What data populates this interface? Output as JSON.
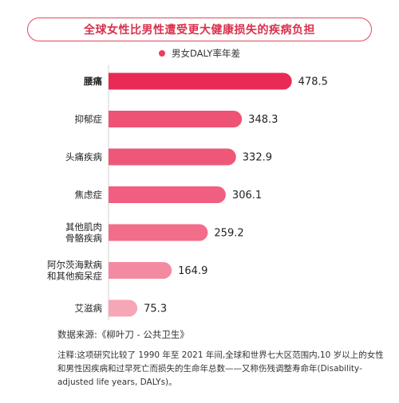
{
  "header": {
    "title": "全球女性比男性遭受更大健康损失的疾病负担"
  },
  "chart_data": {
    "type": "bar",
    "orientation": "horizontal",
    "title": "全球女性比男性遭受更大健康损失的疾病负担",
    "categories": [
      "腰痛",
      "抑郁症",
      "头痛疾病",
      "焦虑症",
      "其他肌肉\n骨骼疾病",
      "阿尔茨海默病\n和其他痴呆症",
      "艾滋病"
    ],
    "series": [
      {
        "name": "男女DALY率年差",
        "values": [
          478.5,
          348.3,
          332.9,
          306.1,
          259.2,
          164.9,
          75.3
        ]
      }
    ],
    "value_labels": [
      "478.5",
      "348.3",
      "332.9",
      "306.1",
      "259.2",
      "164.9",
      "75.3"
    ],
    "xlim": [
      0,
      500
    ],
    "grid": false,
    "legend_position": "top-center",
    "bold_category_index": 0,
    "colors": {
      "max": "#ea2a56",
      "min": "#f7a6b6"
    }
  },
  "footer": {
    "source": "数据来源:《柳叶刀 - 公共卫生》",
    "note": "注释:这项研究比较了 1990 年至 2021 年间,全球和世界七大区范围内,10 岁以上的女性和男性因疾病和过早死亡而损失的生命年总数——又称伤残调整寿命年(Disability-adjusted life years, DALYs)。"
  },
  "colors": {
    "accent": "#e0485e",
    "title_text": "#d9304c",
    "legend_dot": "#ec3f5f"
  }
}
